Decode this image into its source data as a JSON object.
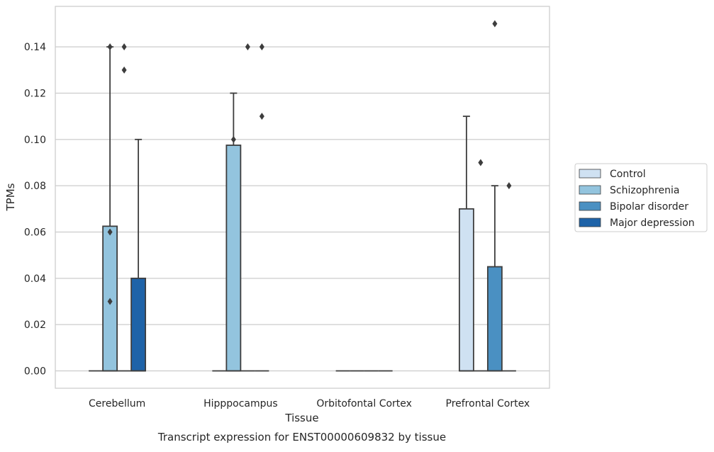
{
  "chart_data": {
    "type": "box",
    "title": "Transcript expression for ENST00000609832 by tissue",
    "xlabel": "Tissue",
    "ylabel": "TPMs",
    "ylim": [
      -0.0075,
      0.1575
    ],
    "yticks": [
      0.0,
      0.02,
      0.04,
      0.06,
      0.08,
      0.1,
      0.12,
      0.14
    ],
    "ytick_labels": [
      "0.00",
      "0.02",
      "0.04",
      "0.06",
      "0.08",
      "0.10",
      "0.12",
      "0.14"
    ],
    "grid": true,
    "legend_position": "right",
    "categories": [
      "Cerebellum",
      "Hipppocampus",
      "Orbitofontal Cortex",
      "Prefrontal Cortex"
    ],
    "series": [
      {
        "name": "Control",
        "color": "#cfe1f2",
        "boxes": [
          {
            "q1": 0,
            "median": 0,
            "q3": 0,
            "whisker_low": 0,
            "whisker_high": 0,
            "outliers": []
          },
          {
            "q1": 0,
            "median": 0,
            "q3": 0,
            "whisker_low": 0,
            "whisker_high": 0,
            "outliers": []
          },
          {
            "q1": 0,
            "median": 0,
            "q3": 0,
            "whisker_low": 0,
            "whisker_high": 0,
            "outliers": []
          },
          {
            "q1": 0,
            "median": 0,
            "q3": 0.07,
            "whisker_low": 0,
            "whisker_high": 0.11,
            "outliers": []
          }
        ]
      },
      {
        "name": "Schizophrenia",
        "color": "#93c4de",
        "boxes": [
          {
            "q1": 0,
            "median": 0,
            "q3": 0.0625,
            "whisker_low": 0,
            "whisker_high": 0.14,
            "outliers": [
              0.14,
              0.06,
              0.03
            ]
          },
          {
            "q1": 0,
            "median": 0,
            "q3": 0.0975,
            "whisker_low": 0,
            "whisker_high": 0.12,
            "outliers": [
              0.1
            ]
          },
          {
            "q1": 0,
            "median": 0,
            "q3": 0,
            "whisker_low": 0,
            "whisker_high": 0,
            "outliers": []
          },
          {
            "q1": 0,
            "median": 0,
            "q3": 0,
            "whisker_low": 0,
            "whisker_high": 0,
            "outliers": [
              0.09
            ]
          }
        ]
      },
      {
        "name": "Bipolar disorder",
        "color": "#4a90c2",
        "boxes": [
          {
            "q1": 0,
            "median": 0,
            "q3": 0,
            "whisker_low": 0,
            "whisker_high": 0,
            "outliers": [
              0.14,
              0.13
            ]
          },
          {
            "q1": 0,
            "median": 0,
            "q3": 0,
            "whisker_low": 0,
            "whisker_high": 0,
            "outliers": [
              0.14
            ]
          },
          {
            "q1": 0,
            "median": 0,
            "q3": 0,
            "whisker_low": 0,
            "whisker_high": 0,
            "outliers": []
          },
          {
            "q1": 0,
            "median": 0,
            "q3": 0.045,
            "whisker_low": 0,
            "whisker_high": 0.08,
            "outliers": [
              0.15
            ]
          }
        ]
      },
      {
        "name": "Major depression",
        "color": "#1e63a8",
        "boxes": [
          {
            "q1": 0,
            "median": 0,
            "q3": 0.04,
            "whisker_low": 0,
            "whisker_high": 0.1,
            "outliers": []
          },
          {
            "q1": 0,
            "median": 0,
            "q3": 0,
            "whisker_low": 0,
            "whisker_high": 0,
            "outliers": [
              0.14,
              0.11
            ]
          },
          {
            "q1": 0,
            "median": 0,
            "q3": 0,
            "whisker_low": 0,
            "whisker_high": 0,
            "outliers": []
          },
          {
            "q1": 0,
            "median": 0,
            "q3": 0,
            "whisker_low": 0,
            "whisker_high": 0,
            "outliers": [
              0.08
            ]
          }
        ]
      }
    ]
  }
}
